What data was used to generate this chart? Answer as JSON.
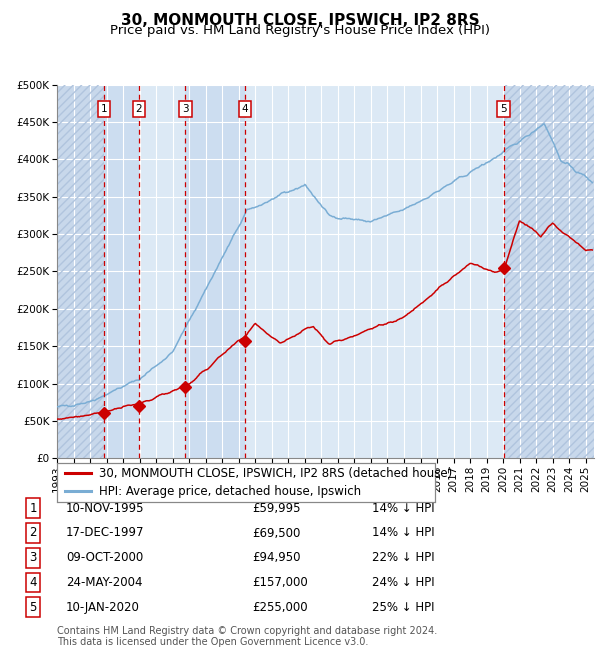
{
  "title": "30, MONMOUTH CLOSE, IPSWICH, IP2 8RS",
  "subtitle": "Price paid vs. HM Land Registry's House Price Index (HPI)",
  "ylabel_vals": [
    0,
    50000,
    100000,
    150000,
    200000,
    250000,
    300000,
    350000,
    400000,
    450000,
    500000
  ],
  "ylabel_labels": [
    "£0",
    "£50K",
    "£100K",
    "£150K",
    "£200K",
    "£250K",
    "£300K",
    "£350K",
    "£400K",
    "£450K",
    "£500K"
  ],
  "xlim_start": 1993.0,
  "xlim_end": 2025.5,
  "ylim_min": 0,
  "ylim_max": 500000,
  "bg_color": "#dce9f5",
  "grid_color": "#ffffff",
  "hpi_color": "#7aadd4",
  "price_color": "#cc0000",
  "sale_marker_color": "#cc0000",
  "vline_color": "#cc0000",
  "sale_dates_x": [
    1995.86,
    1997.96,
    2000.77,
    2004.39,
    2020.03
  ],
  "sale_prices": [
    59995,
    69500,
    94950,
    157000,
    255000
  ],
  "sale_labels": [
    "1",
    "2",
    "3",
    "4",
    "5"
  ],
  "sale_date_strings": [
    "10-NOV-1995",
    "17-DEC-1997",
    "09-OCT-2000",
    "24-MAY-2004",
    "10-JAN-2020"
  ],
  "sale_price_strings": [
    "£59,995",
    "£69,500",
    "£94,950",
    "£157,000",
    "£255,000"
  ],
  "sale_pct_strings": [
    "14% ↓ HPI",
    "14% ↓ HPI",
    "22% ↓ HPI",
    "24% ↓ HPI",
    "25% ↓ HPI"
  ],
  "legend_line1": "30, MONMOUTH CLOSE, IPSWICH, IP2 8RS (detached house)",
  "legend_line2": "HPI: Average price, detached house, Ipswich",
  "footnote": "Contains HM Land Registry data © Crown copyright and database right 2024.\nThis data is licensed under the Open Government Licence v3.0.",
  "title_fontsize": 11,
  "subtitle_fontsize": 9.5,
  "tick_fontsize": 7.5,
  "legend_fontsize": 8.5,
  "table_fontsize": 8.5,
  "footnote_fontsize": 7
}
